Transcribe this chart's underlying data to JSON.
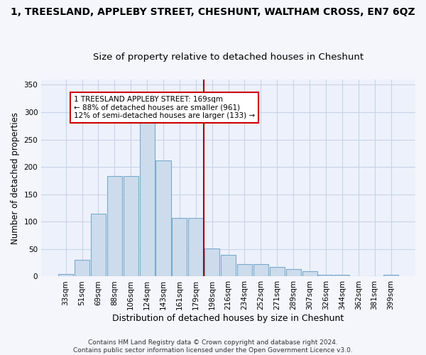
{
  "title": "1, TREESLAND, APPLEBY STREET, CHESHUNT, WALTHAM CROSS, EN7 6QZ",
  "subtitle": "Size of property relative to detached houses in Cheshunt",
  "xlabel": "Distribution of detached houses by size in Cheshunt",
  "ylabel": "Number of detached properties",
  "categories": [
    "33sqm",
    "51sqm",
    "69sqm",
    "88sqm",
    "106sqm",
    "124sqm",
    "143sqm",
    "161sqm",
    "179sqm",
    "198sqm",
    "216sqm",
    "234sqm",
    "252sqm",
    "271sqm",
    "289sqm",
    "307sqm",
    "326sqm",
    "344sqm",
    "362sqm",
    "381sqm",
    "399sqm"
  ],
  "values": [
    5,
    30,
    115,
    183,
    183,
    285,
    212,
    107,
    107,
    51,
    40,
    23,
    23,
    18,
    13,
    10,
    3,
    3,
    0,
    0,
    3
  ],
  "bar_color": "#ccdcec",
  "bar_edge_color": "#7aaacb",
  "grid_color": "#c8d4e8",
  "bg_color": "#edf1fb",
  "fig_bg_color": "#f4f6fc",
  "vline_x_index": 8.5,
  "vline_color": "#aa0000",
  "annotation_text": "1 TREESLAND APPLEBY STREET: 169sqm\n← 88% of detached houses are smaller (961)\n12% of semi-detached houses are larger (133) →",
  "annotation_box_color": "#cc0000",
  "footer": "Contains HM Land Registry data © Crown copyright and database right 2024.\nContains public sector information licensed under the Open Government Licence v3.0.",
  "ylim": [
    0,
    360
  ],
  "yticks": [
    0,
    50,
    100,
    150,
    200,
    250,
    300,
    350
  ],
  "title_fontsize": 10,
  "subtitle_fontsize": 9.5,
  "ylabel_fontsize": 8.5,
  "xlabel_fontsize": 9,
  "tick_fontsize": 7.5,
  "annotation_fontsize": 7.5,
  "footer_fontsize": 6.5
}
